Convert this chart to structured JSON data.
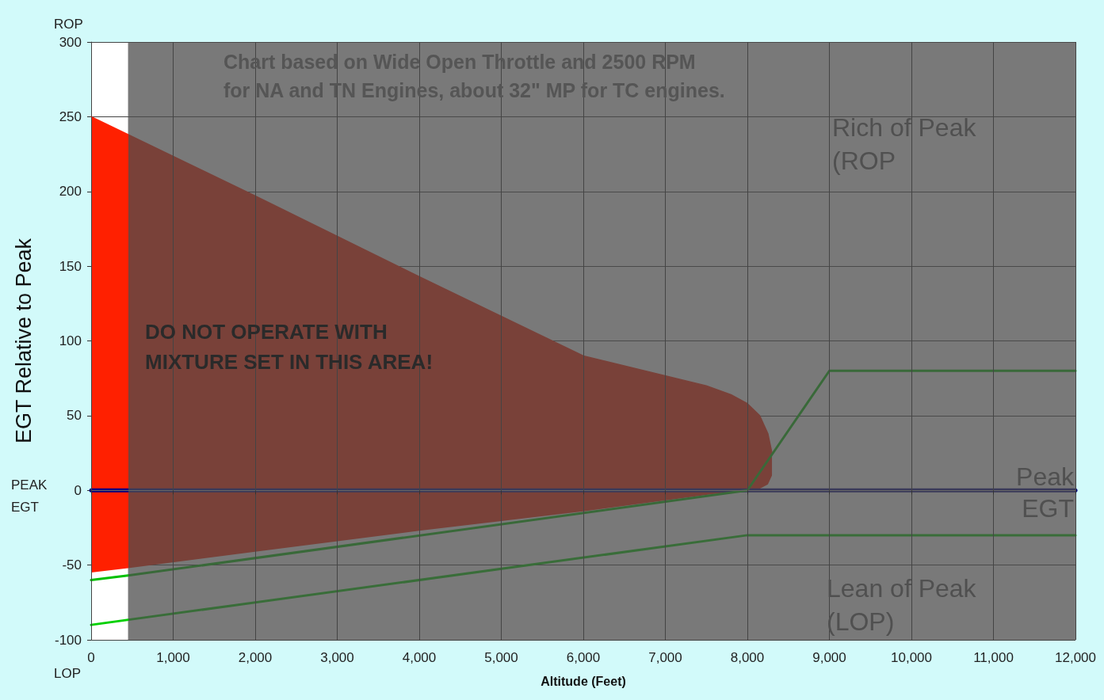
{
  "chart_data": {
    "type": "line",
    "title": "Chart based on Wide Open Throttle and 2500 RPM\nfor NA and TN Engines, about 32\" MP for TC engines.",
    "xlabel": "Altitude (Feet)",
    "ylabel": "EGT Relative to Peak",
    "annotations": [
      "ROP",
      "PEAK\nEGT",
      "LOP",
      "DO NOT OPERATE WITH\nMIXTURE SET IN THIS AREA!",
      "Rich of Peak\n(ROP",
      "Peak\nEGT",
      "Lean of Peak\n(LOP)"
    ],
    "xlim": [
      0,
      12000
    ],
    "ylim": [
      -100,
      300
    ],
    "xticks": [
      0,
      {
        "value": 1000,
        "label": "1,000"
      },
      {
        "value": 2000,
        "label": "2,000"
      },
      {
        "value": 3000,
        "label": "3,000"
      },
      {
        "value": 4000,
        "label": "4,000"
      },
      {
        "value": 5000,
        "label": "5,000"
      },
      {
        "value": 6000,
        "label": "6,000"
      },
      {
        "value": 7000,
        "label": "7,000"
      },
      {
        "value": 8000,
        "label": "8,000"
      },
      {
        "value": 9000,
        "label": "9,000"
      },
      {
        "value": 10000,
        "label": "10,000"
      },
      {
        "value": 11000,
        "label": "11,000"
      },
      {
        "value": 12000,
        "label": "12,000"
      }
    ],
    "yticks": [
      -100,
      -50,
      0,
      50,
      100,
      150,
      200,
      250,
      300
    ],
    "grid": true,
    "marker": "none",
    "line_style": "solid",
    "bands": [
      {
        "axis": "x",
        "from": 450,
        "to": 12000,
        "color": "#4c4c4c"
      }
    ],
    "series": [
      {
        "type": "line",
        "color": "#ff2000",
        "x": [
          0,
          450,
          2000,
          4000,
          6000,
          7500,
          7800,
          8000,
          8150,
          8250,
          8300
        ],
        "values": [
          250,
          238,
          197,
          143,
          90,
          70,
          64,
          58,
          50,
          38,
          25
        ],
        "upper": [
          250,
          238,
          197,
          143,
          90,
          70,
          64,
          58,
          50,
          38,
          25
        ],
        "lower": [
          -55,
          -52,
          -41,
          -27,
          -14,
          -3,
          -1,
          0,
          1,
          4,
          10
        ]
      },
      {
        "color": "#000080",
        "x": [
          0,
          12000
        ],
        "values": [
          0,
          0
        ]
      },
      {
        "color": "#00c000",
        "x": [
          0,
          450,
          8000,
          8250,
          9000,
          12000
        ],
        "values": [
          -60,
          -57,
          0,
          20,
          80,
          80
        ]
      },
      {
        "color": "#00d000",
        "x": [
          0,
          8000,
          12000
        ],
        "values": [
          -90,
          -30,
          -30
        ]
      }
    ]
  }
}
